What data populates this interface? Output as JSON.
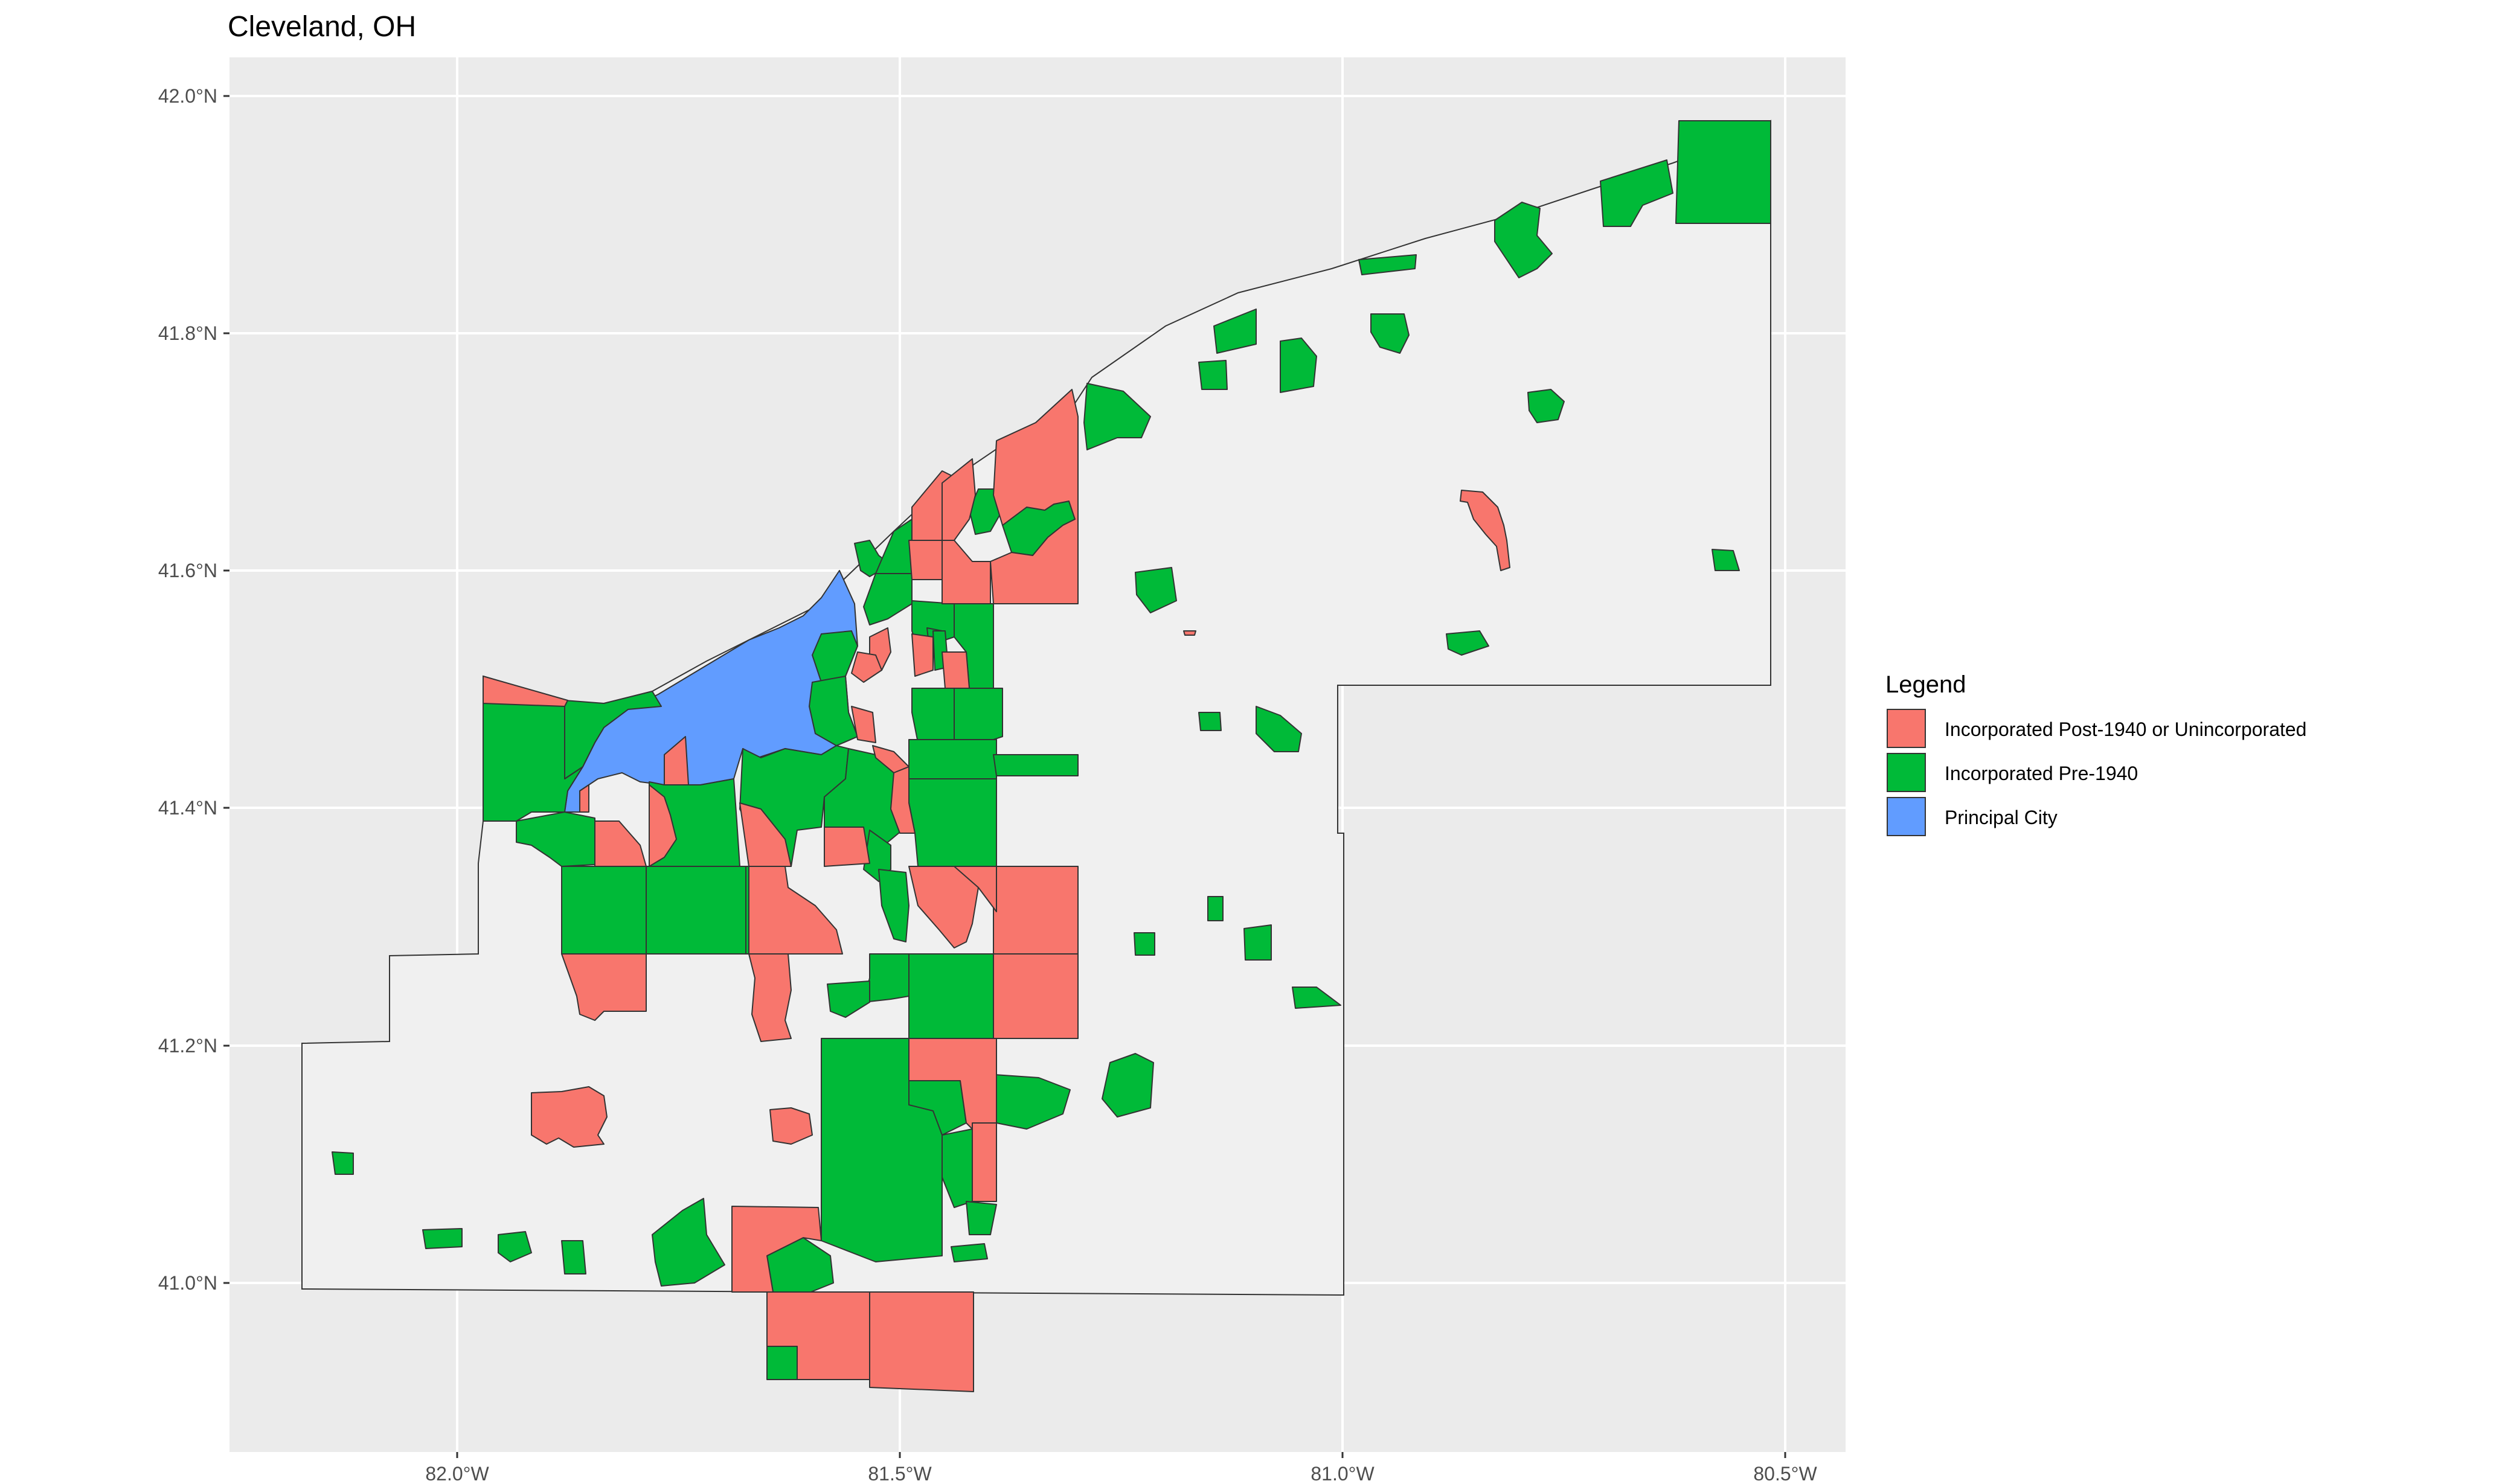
{
  "title": "Cleveland, OH",
  "legend": {
    "title": "Legend",
    "items": [
      {
        "label": "Incorporated Post-1940 or Unincorporated",
        "color": "#F8766D"
      },
      {
        "label": "Incorporated Pre-1940",
        "color": "#00BA38"
      },
      {
        "label": "Principal City",
        "color": "#619CFF"
      }
    ]
  },
  "axes": {
    "x_ticks": [
      "82.0°W",
      "81.5°W",
      "81.0°W",
      "80.5°W"
    ],
    "y_ticks": [
      "42.0°N",
      "41.8°N",
      "41.6°N",
      "41.4°N",
      "41.2°N",
      "41.0°N"
    ]
  },
  "colors": {
    "panel_background": "#EBEBEB",
    "study_area_fill": "#F0F0F0",
    "border": "#333333"
  }
}
